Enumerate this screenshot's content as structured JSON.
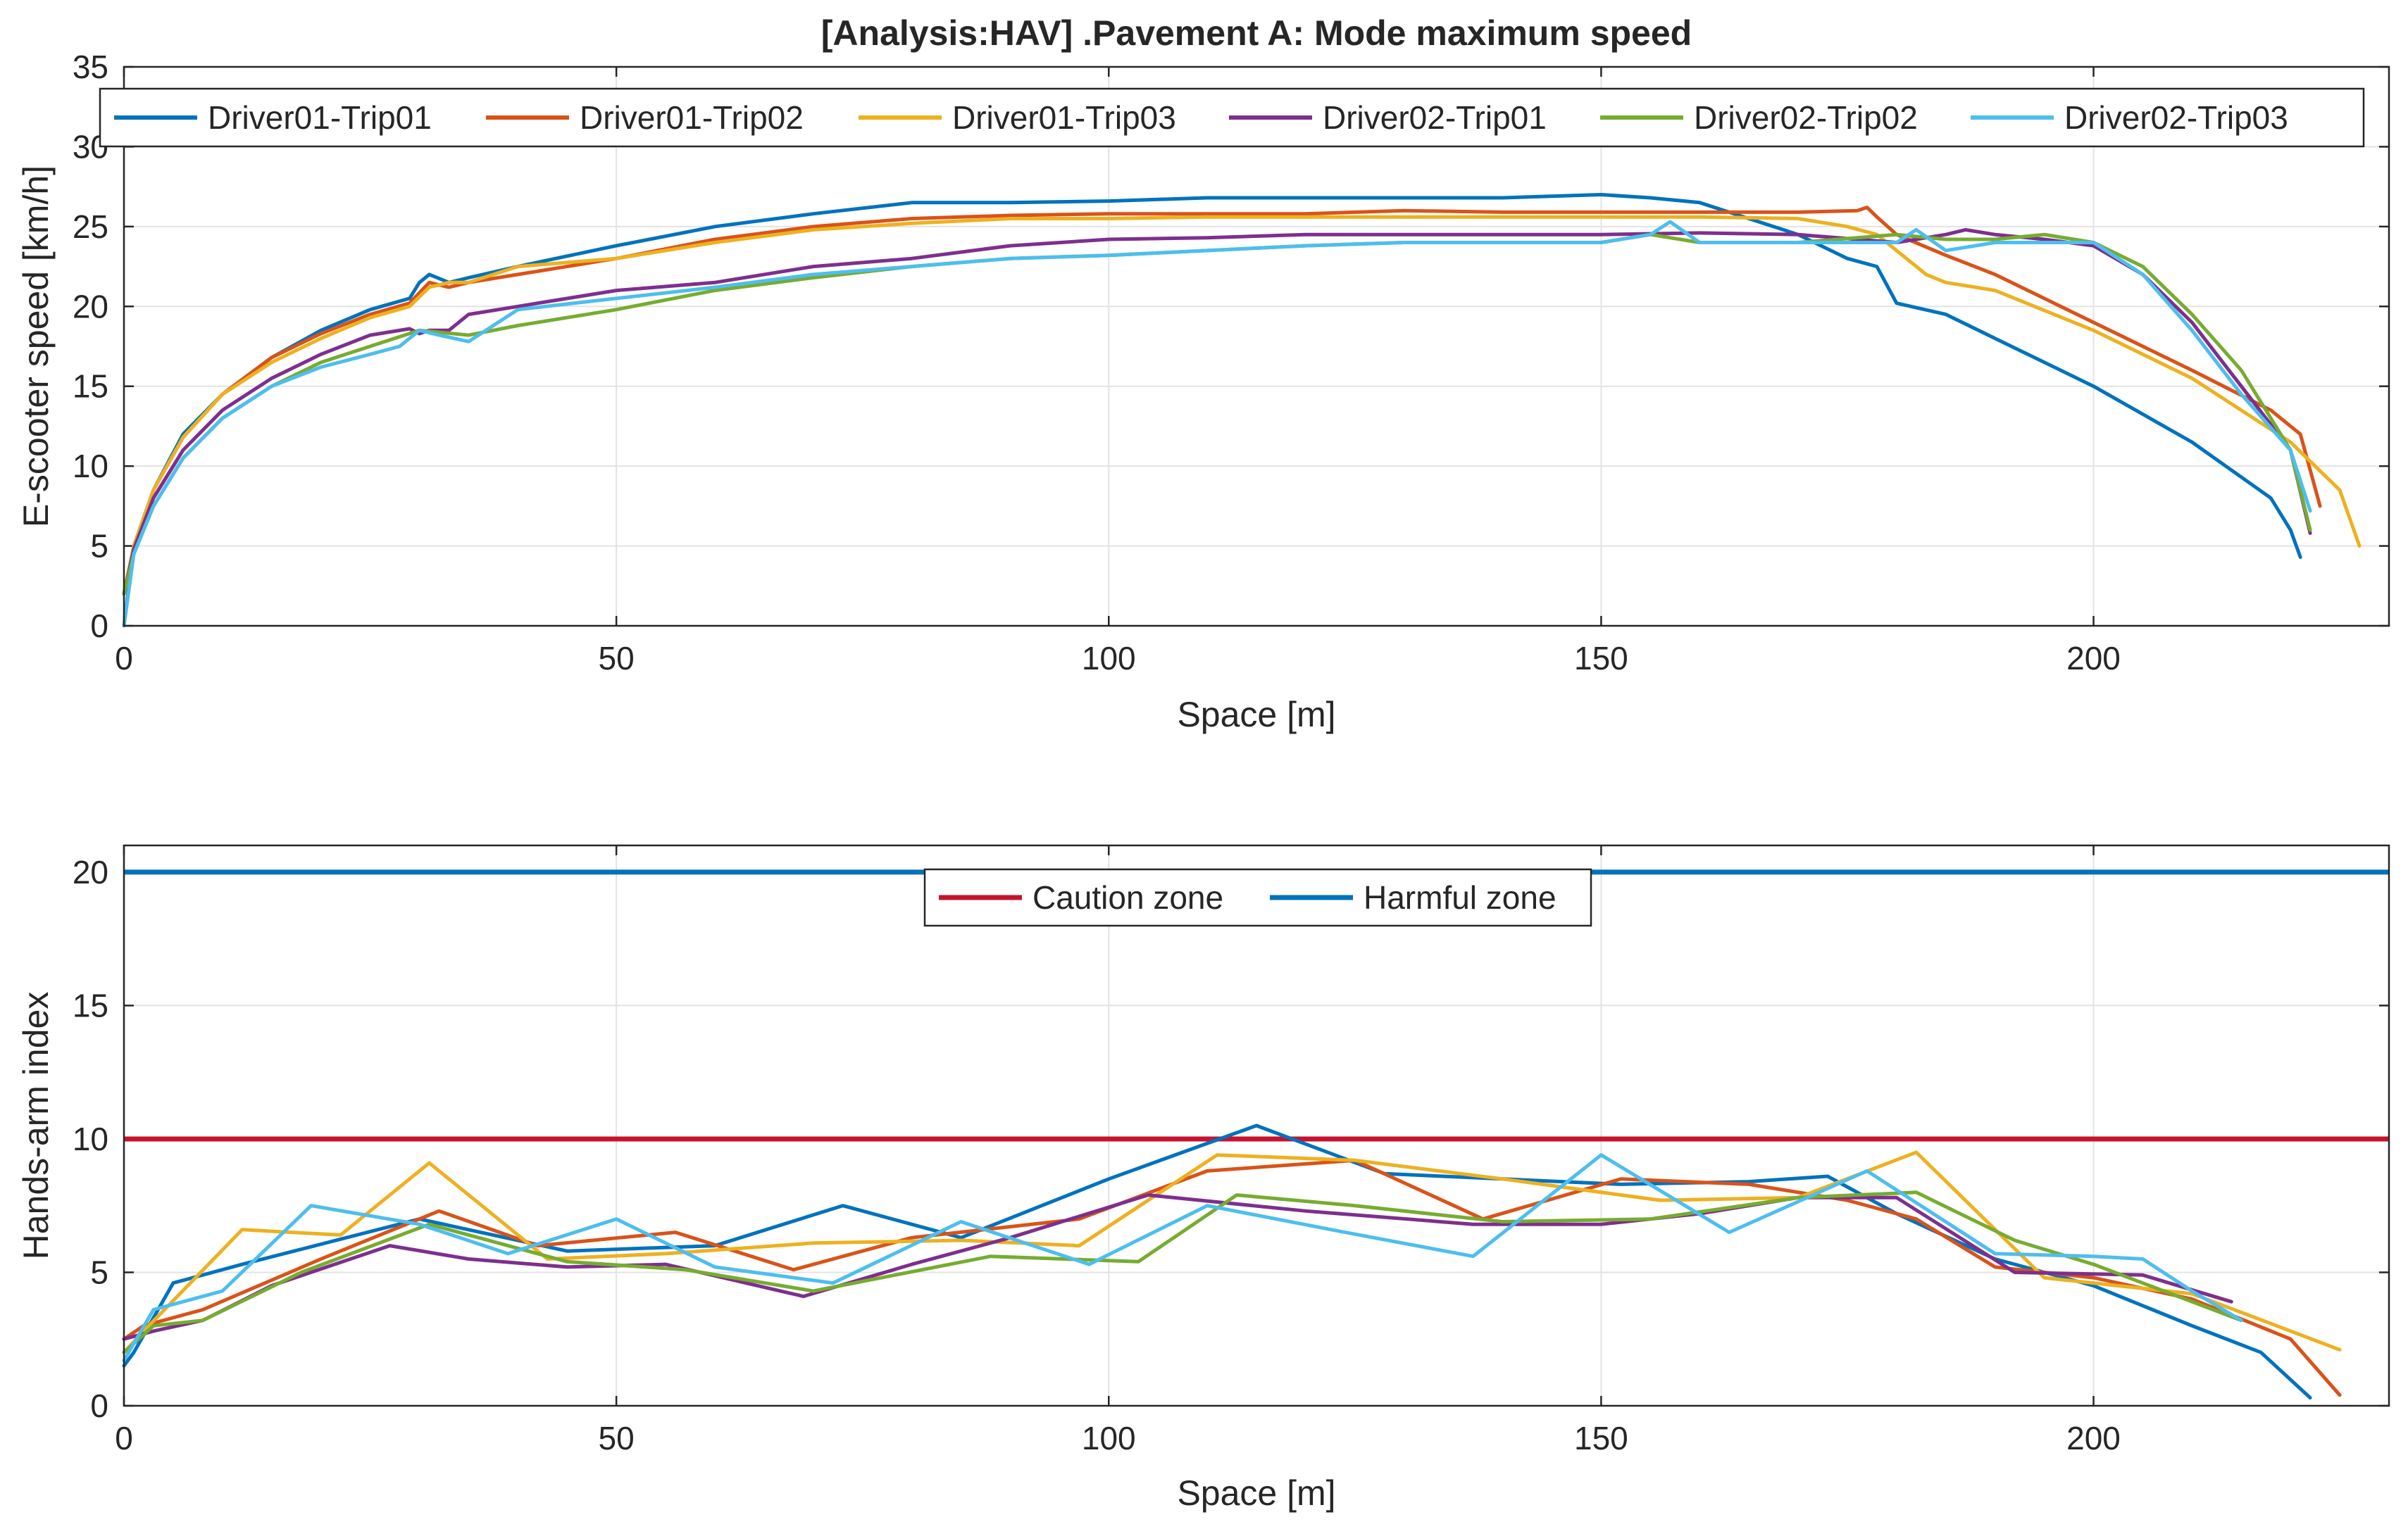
{
  "chart_data": [
    {
      "type": "line",
      "title": "[Analysis:HAV] .Pavement A: Mode maximum speed",
      "xlabel": "Space [m]",
      "ylabel": "E-scooter speed [km/h]",
      "xlim": [
        0,
        230
      ],
      "ylim": [
        0,
        35
      ],
      "grid": true,
      "legend_position": "top (horizontal)",
      "xticks": [
        "0",
        "50",
        "100",
        "150",
        "200"
      ],
      "yticks": [
        "0",
        "5",
        "10",
        "15",
        "20",
        "25",
        "30",
        "35"
      ],
      "series": [
        {
          "name": "Driver01-Trip01",
          "color": "#0072BD",
          "x": [
            0,
            1,
            3,
            6,
            10,
            15,
            20,
            25,
            29,
            30,
            31,
            33,
            35,
            40,
            50,
            60,
            70,
            80,
            90,
            100,
            110,
            120,
            130,
            140,
            150,
            155,
            160,
            165,
            170,
            175,
            178,
            180,
            185,
            190,
            200,
            210,
            218,
            220,
            221
          ],
          "y": [
            0,
            5,
            8.5,
            12,
            14.5,
            16.8,
            18.5,
            19.8,
            20.5,
            21.5,
            22,
            21.5,
            21.8,
            22.5,
            23.8,
            25,
            25.8,
            26.5,
            26.5,
            26.6,
            26.8,
            26.8,
            26.8,
            26.8,
            27,
            26.8,
            26.5,
            25.5,
            24.5,
            23,
            22.5,
            20.2,
            19.5,
            18,
            15,
            11.5,
            8,
            6,
            4.3
          ]
        },
        {
          "name": "Driver01-Trip02",
          "color": "#D95319",
          "x": [
            0,
            1,
            3,
            6,
            10,
            15,
            20,
            25,
            29,
            31,
            33,
            35,
            40,
            50,
            60,
            70,
            80,
            90,
            100,
            110,
            120,
            130,
            140,
            150,
            160,
            170,
            176,
            177,
            178,
            180,
            185,
            190,
            200,
            210,
            218,
            221,
            223
          ],
          "y": [
            2,
            5,
            8.5,
            11.8,
            14.5,
            16.8,
            18.3,
            19.5,
            20.2,
            21.5,
            21.2,
            21.5,
            22,
            23,
            24.2,
            25,
            25.5,
            25.7,
            25.8,
            25.8,
            25.8,
            26,
            25.9,
            25.9,
            25.9,
            25.9,
            26,
            26.2,
            25.6,
            24.5,
            23.2,
            22,
            19,
            16,
            13.5,
            12,
            7.5
          ]
        },
        {
          "name": "Driver01-Trip03",
          "color": "#EDB120",
          "x": [
            0,
            1,
            3,
            6,
            10,
            15,
            20,
            25,
            29,
            31,
            33,
            35,
            40,
            50,
            60,
            70,
            80,
            90,
            100,
            110,
            120,
            130,
            140,
            150,
            160,
            170,
            175,
            178,
            180,
            183,
            185,
            190,
            200,
            210,
            220,
            225,
            227
          ],
          "y": [
            2,
            5,
            8.5,
            11.8,
            14.5,
            16.5,
            18,
            19.3,
            20,
            21.2,
            21.5,
            21.5,
            22.5,
            23,
            24,
            24.8,
            25.2,
            25.5,
            25.5,
            25.6,
            25.6,
            25.6,
            25.6,
            25.6,
            25.6,
            25.5,
            25,
            24.5,
            23.5,
            22,
            21.5,
            21,
            18.5,
            15.5,
            11.5,
            8.5,
            5
          ]
        },
        {
          "name": "Driver02-Trip01",
          "color": "#7E2F8E",
          "x": [
            0,
            1,
            3,
            6,
            10,
            15,
            20,
            25,
            29,
            30,
            31,
            33,
            35,
            40,
            50,
            60,
            70,
            80,
            90,
            100,
            110,
            120,
            130,
            140,
            150,
            160,
            170,
            180,
            185,
            187,
            190,
            195,
            200,
            205,
            210,
            215,
            220,
            222
          ],
          "y": [
            2,
            4.8,
            8,
            11,
            13.5,
            15.5,
            17,
            18.2,
            18.6,
            18.3,
            18.5,
            18.5,
            19.5,
            20,
            21,
            21.5,
            22.5,
            23,
            23.8,
            24.2,
            24.3,
            24.5,
            24.5,
            24.5,
            24.5,
            24.6,
            24.5,
            24,
            24.5,
            24.8,
            24.5,
            24.2,
            23.8,
            22,
            19,
            15,
            11,
            5.8
          ]
        },
        {
          "name": "Driver02-Trip02",
          "color": "#77AC30",
          "x": [
            0,
            1,
            3,
            6,
            10,
            15,
            20,
            25,
            30,
            35,
            40,
            50,
            60,
            70,
            80,
            90,
            100,
            110,
            120,
            130,
            140,
            150,
            155,
            160,
            170,
            180,
            185,
            190,
            195,
            200,
            205,
            210,
            215,
            220,
            222
          ],
          "y": [
            2,
            4.5,
            7.5,
            10.5,
            13,
            15,
            16.5,
            17.5,
            18.5,
            18.2,
            18.8,
            19.8,
            21,
            21.8,
            22.5,
            23,
            23.2,
            23.5,
            23.8,
            24,
            24,
            24,
            24.5,
            24,
            24,
            24.5,
            24.2,
            24.2,
            24.5,
            24,
            22.5,
            19.5,
            16,
            11,
            6
          ]
        },
        {
          "name": "Driver02-Trip03",
          "color": "#4DBEEE",
          "x": [
            0,
            1,
            3,
            6,
            10,
            15,
            20,
            25,
            28,
            30,
            32,
            35,
            38,
            40,
            50,
            60,
            70,
            80,
            90,
            100,
            110,
            120,
            130,
            140,
            150,
            155,
            157,
            160,
            170,
            180,
            182,
            185,
            190,
            195,
            200,
            205,
            210,
            215,
            220,
            222
          ],
          "y": [
            0,
            4.5,
            7.5,
            10.5,
            13,
            15,
            16.2,
            17,
            17.5,
            18.5,
            18.2,
            17.8,
            19,
            19.8,
            20.5,
            21.2,
            22,
            22.5,
            23,
            23.2,
            23.5,
            23.8,
            24,
            24,
            24,
            24.5,
            25.3,
            24,
            24,
            24,
            24.8,
            23.5,
            24,
            24,
            24,
            22,
            18.5,
            14.5,
            11,
            7.2
          ]
        }
      ]
    },
    {
      "type": "line",
      "title": "",
      "xlabel": "Space [m]",
      "ylabel": "Hands-arm index",
      "xlim": [
        0,
        230
      ],
      "ylim": [
        0,
        21
      ],
      "grid": true,
      "legend_position": "top-center",
      "xticks": [
        "0",
        "50",
        "100",
        "150",
        "200"
      ],
      "yticks": [
        "0",
        "5",
        "10",
        "15",
        "20"
      ],
      "thresholds": [
        {
          "name": "Caution zone",
          "color": "#C6122F",
          "value": 10
        },
        {
          "name": "Harmful zone",
          "color": "#0072BD",
          "value": 20
        }
      ],
      "series": [
        {
          "name": "Driver01-Trip01",
          "color": "#0072BD",
          "x": [
            0,
            1,
            5,
            12,
            30,
            45,
            60,
            73,
            85,
            100,
            115,
            128,
            140,
            152,
            165,
            173,
            180,
            190,
            200,
            210,
            217,
            222
          ],
          "y": [
            1.5,
            2,
            4.6,
            5.3,
            7,
            5.8,
            6,
            7.5,
            6.3,
            8.5,
            10.5,
            8.7,
            8.5,
            8.3,
            8.4,
            8.6,
            7.2,
            5.5,
            4.5,
            3,
            2,
            0.3
          ]
        },
        {
          "name": "Driver01-Trip02",
          "color": "#D95319",
          "x": [
            0,
            2,
            8,
            20,
            32,
            42,
            56,
            68,
            80,
            97,
            110,
            125,
            138,
            152,
            165,
            175,
            182,
            190,
            200,
            210,
            220,
            225
          ],
          "y": [
            2.5,
            3,
            3.6,
            5.5,
            7.3,
            6,
            6.5,
            5.1,
            6.3,
            7,
            8.8,
            9.2,
            7,
            8.5,
            8.3,
            7.7,
            7,
            5.2,
            4.8,
            4,
            2.5,
            0.4
          ]
        },
        {
          "name": "Driver01-Trip03",
          "color": "#EDB120",
          "x": [
            0,
            2,
            12,
            22,
            31,
            43,
            55,
            70,
            85,
            97,
            111,
            125,
            140,
            156,
            170,
            182,
            195,
            210,
            225
          ],
          "y": [
            2,
            2.8,
            6.6,
            6.4,
            9.1,
            5.5,
            5.7,
            6.1,
            6.2,
            6,
            9.4,
            9.2,
            8.5,
            7.7,
            7.8,
            9.5,
            4.8,
            4.2,
            2.1
          ]
        },
        {
          "name": "Driver02-Trip01",
          "color": "#7E2F8E",
          "x": [
            0,
            3,
            8,
            15,
            27,
            35,
            45,
            55,
            69,
            80,
            90,
            104,
            120,
            137,
            150,
            160,
            170,
            180,
            192,
            205,
            214
          ],
          "y": [
            2.5,
            2.8,
            3.2,
            4.5,
            6,
            5.5,
            5.2,
            5.3,
            4.1,
            5.3,
            6.3,
            7.9,
            7.3,
            6.8,
            6.8,
            7.2,
            7.8,
            7.8,
            5,
            4.9,
            3.9
          ]
        },
        {
          "name": "Driver02-Trip02",
          "color": "#77AC30",
          "x": [
            0,
            3,
            8,
            18,
            31,
            45,
            57,
            70,
            88,
            103,
            113,
            125,
            140,
            155,
            170,
            182,
            192,
            200,
            215
          ],
          "y": [
            2,
            3,
            3.2,
            5,
            6.8,
            5.4,
            5.1,
            4.3,
            5.6,
            5.4,
            7.9,
            7.5,
            6.9,
            7,
            7.8,
            8,
            6.2,
            5.3,
            3.2
          ]
        },
        {
          "name": "Driver02-Trip03",
          "color": "#4DBEEE",
          "x": [
            0,
            3,
            10,
            19,
            30,
            39,
            50,
            60,
            72,
            85,
            98,
            110,
            124,
            137,
            150,
            163,
            177,
            190,
            200,
            205,
            210,
            215
          ],
          "y": [
            1.7,
            3.6,
            4.3,
            7.5,
            6.8,
            5.7,
            7,
            5.2,
            4.6,
            6.9,
            5.3,
            7.5,
            6.5,
            5.6,
            9.4,
            6.5,
            8.8,
            5.7,
            5.6,
            5.5,
            4.3,
            3.2
          ]
        }
      ]
    }
  ]
}
